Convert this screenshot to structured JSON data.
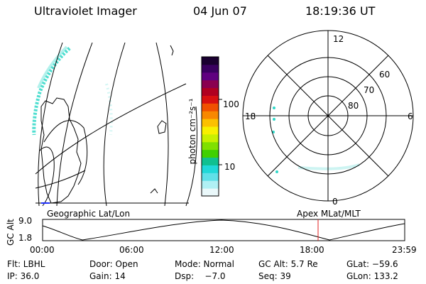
{
  "header": {
    "title": "Ultraviolet Imager",
    "date": "04 Jun 07",
    "time": "18:19:36 UT"
  },
  "colorbar": {
    "label": "photon cm⁻²s⁻¹",
    "ticks": [
      "100",
      "10"
    ],
    "colors": [
      "#1a0030",
      "#3a0060",
      "#600080",
      "#8a0050",
      "#b00020",
      "#d81010",
      "#f05000",
      "#f88800",
      "#fcc000",
      "#f8f000",
      "#c8f000",
      "#80e000",
      "#40d000",
      "#10c090",
      "#20d8d8",
      "#60e0e8",
      "#b0f0f4",
      "#eaf8fa"
    ]
  },
  "polar": {
    "lat_labels": [
      "60",
      "70",
      "80"
    ],
    "mlt_labels": [
      "12",
      "18",
      "6",
      "0"
    ]
  },
  "geo_panel": {
    "label": "Geographic Lat/Lon"
  },
  "apex_panel": {
    "label": "Apex MLat/MLT"
  },
  "altplot": {
    "ylabel": "GC Alt",
    "yticks": [
      "9.0",
      "1.8"
    ],
    "xticks": [
      "00:00",
      "06:00",
      "12:00",
      "18:00",
      "23:59"
    ],
    "marker_time": "18:19"
  },
  "status": {
    "filter": "Flt: LBHL",
    "door": "Door: Open",
    "mode": "Mode: Normal",
    "gc_alt": "GC Alt: 5.7 Re",
    "glat": "GLat: −59.6",
    "ip": "IP: 36.0",
    "gain": "Gain: 14",
    "dsp": "Dsp:    −7.0",
    "seq": "Seq: 39",
    "glon": "GLon: 133.2"
  }
}
